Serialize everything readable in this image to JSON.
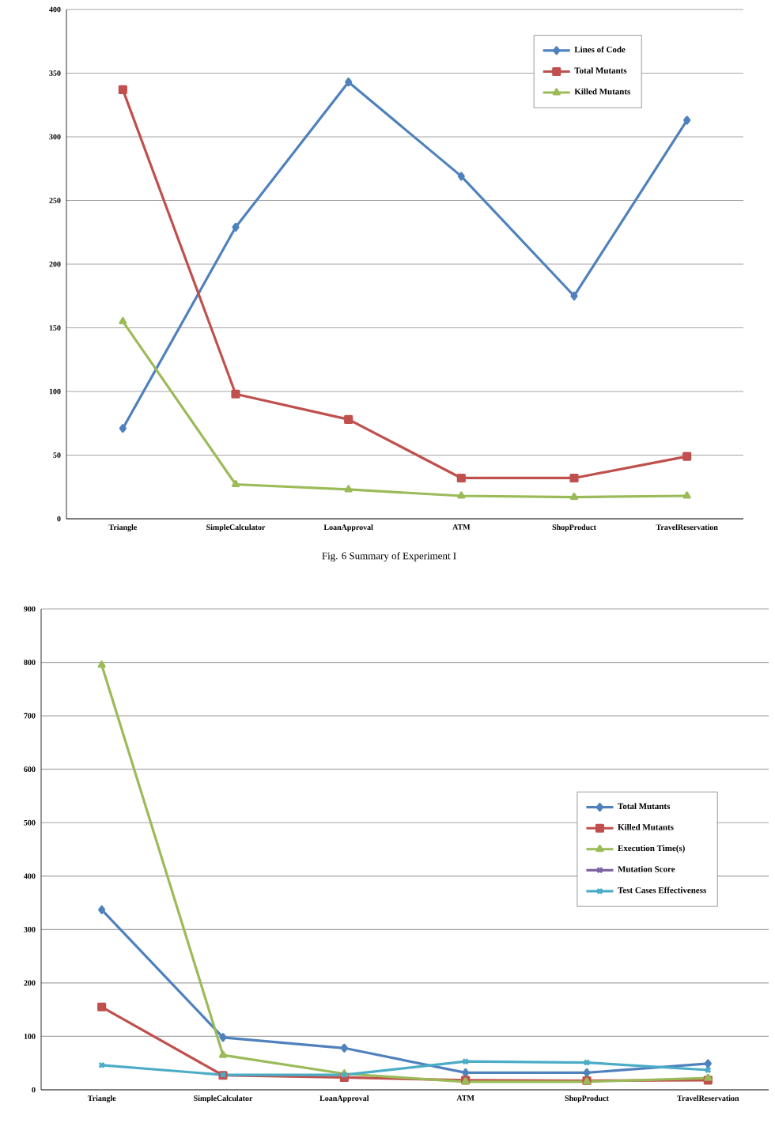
{
  "chart_data": [
    {
      "type": "line",
      "categories": [
        "Triangle",
        "SimpleCalculator",
        "LoanApproval",
        "ATM",
        "ShopProduct",
        "TravelReservation"
      ],
      "ylim": [
        0,
        400
      ],
      "yticks": [
        0,
        50,
        100,
        150,
        200,
        250,
        300,
        350,
        400
      ],
      "grid": "y",
      "legend": "top right",
      "annotations": [
        "Fig. 6 Summary of Experiment I"
      ],
      "series": [
        {
          "name": "Lines of Code",
          "color": "#4f81bd",
          "marker": "diamond",
          "values": [
            71,
            229,
            343,
            269,
            175,
            313
          ]
        },
        {
          "name": "Total Mutants",
          "color": "#c0504d",
          "marker": "square",
          "values": [
            337,
            98,
            78,
            32,
            32,
            49
          ]
        },
        {
          "name": "Killed Mutants",
          "color": "#9bbb59",
          "marker": "triangle",
          "values": [
            155,
            27,
            23,
            18,
            17,
            18
          ]
        }
      ]
    },
    {
      "type": "line",
      "categories": [
        "Triangle",
        "SimpleCalculator",
        "LoanApproval",
        "ATM",
        "ShopProduct",
        "TravelReservation"
      ],
      "ylim": [
        0,
        900
      ],
      "yticks": [
        0,
        100,
        200,
        300,
        400,
        500,
        600,
        700,
        800,
        900
      ],
      "grid": "y",
      "legend": "right",
      "series": [
        {
          "name": "Total Mutants",
          "color": "#4f81bd",
          "marker": "diamond",
          "values": [
            337,
            98,
            78,
            32,
            32,
            49
          ]
        },
        {
          "name": "Killed Mutants",
          "color": "#c0504d",
          "marker": "square",
          "values": [
            155,
            27,
            23,
            18,
            17,
            18
          ]
        },
        {
          "name": "Execution Time(s)",
          "color": "#9bbb59",
          "marker": "triangle",
          "values": [
            795,
            65,
            30,
            15,
            15,
            22
          ]
        },
        {
          "name": "Mutation Score",
          "color": "#8064a2",
          "marker": "cross",
          "values": [
            null,
            null,
            null,
            null,
            null,
            null
          ]
        },
        {
          "name": "Test Cases Effectiveness",
          "color": "#4bacc6",
          "marker": "cross",
          "values": [
            46,
            28,
            28,
            53,
            51,
            37
          ]
        }
      ]
    }
  ]
}
